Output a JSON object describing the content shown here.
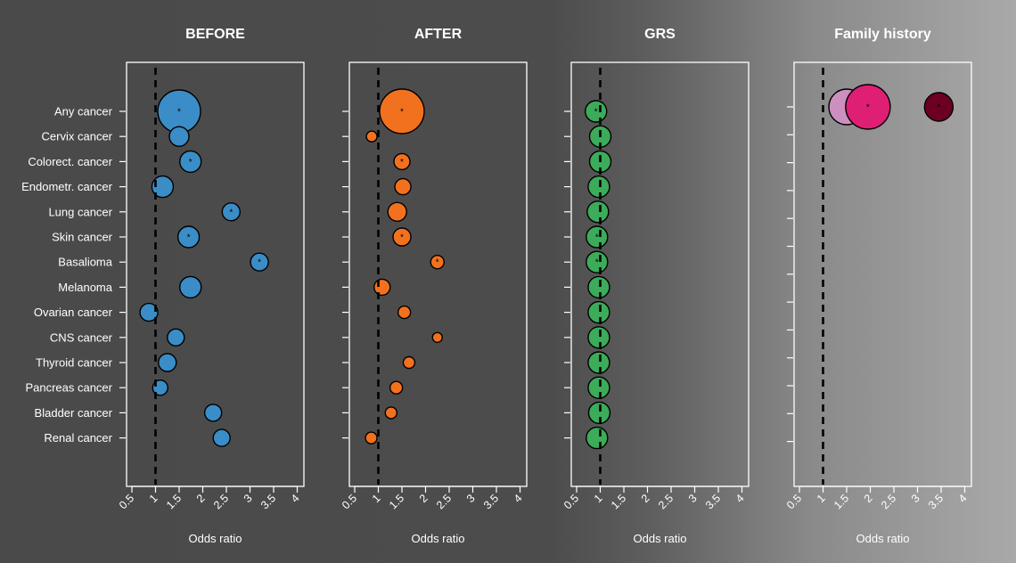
{
  "chart_data": {
    "type": "scatter",
    "subtype": "bubble-forest",
    "categories": [
      "Any cancer",
      "Cervix cancer",
      "Colorect. cancer",
      "Endometr. cancer",
      "Lung cancer",
      "Skin cancer",
      "Basalioma",
      "Melanoma",
      "Ovarian cancer",
      "CNS cancer",
      "Thyroid cancer",
      "Pancreas cancer",
      "Bladder cancer",
      "Renal cancer"
    ],
    "xticks": [
      0.5,
      1,
      1.5,
      2,
      2.5,
      3,
      3.5,
      4
    ],
    "xtick_labels": [
      "0.5",
      "1",
      "1.5",
      "2",
      "2.5",
      "3",
      "3.5",
      "4"
    ],
    "xlim": [
      0.45,
      4.1
    ],
    "reference_line": 1,
    "star_label": "*",
    "panels": [
      {
        "title": "BEFORE",
        "xlabel": "Odds ratio",
        "show_category_labels": true,
        "points": [
          {
            "label": "Any cancer",
            "or": 1.5,
            "radius": 24,
            "star": true,
            "color": "#3a8dc6"
          },
          {
            "label": "Cervix cancer",
            "or": 1.5,
            "radius": 11,
            "star": false,
            "color": "#3a8dc6"
          },
          {
            "label": "Colorect. cancer",
            "or": 1.74,
            "radius": 12,
            "star": true,
            "color": "#3a8dc6"
          },
          {
            "label": "Endometr. cancer",
            "or": 1.15,
            "radius": 12,
            "star": false,
            "color": "#3a8dc6"
          },
          {
            "label": "Lung cancer",
            "or": 2.6,
            "radius": 10,
            "star": true,
            "color": "#3a8dc6"
          },
          {
            "label": "Skin cancer",
            "or": 1.7,
            "radius": 12,
            "star": true,
            "color": "#3a8dc6"
          },
          {
            "label": "Basalioma",
            "or": 3.2,
            "radius": 10,
            "star": true,
            "color": "#3a8dc6"
          },
          {
            "label": "Melanoma",
            "or": 1.74,
            "radius": 12,
            "star": false,
            "color": "#3a8dc6"
          },
          {
            "label": "Ovarian cancer",
            "or": 0.86,
            "radius": 10,
            "star": false,
            "color": "#3a8dc6"
          },
          {
            "label": "CNS cancer",
            "or": 1.43,
            "radius": 9.5,
            "star": false,
            "color": "#3a8dc6"
          },
          {
            "label": "Thyroid cancer",
            "or": 1.25,
            "radius": 10,
            "star": false,
            "color": "#3a8dc6"
          },
          {
            "label": "Pancreas cancer",
            "or": 1.1,
            "radius": 8.5,
            "star": false,
            "color": "#3a8dc6"
          },
          {
            "label": "Bladder cancer",
            "or": 2.22,
            "radius": 9.5,
            "star": false,
            "color": "#3a8dc6"
          },
          {
            "label": "Renal cancer",
            "or": 2.4,
            "radius": 9.5,
            "star": false,
            "color": "#3a8dc6"
          }
        ]
      },
      {
        "title": "AFTER",
        "xlabel": "Odds ratio",
        "show_category_labels": false,
        "points": [
          {
            "label": "Any cancer",
            "or": 1.5,
            "radius": 25,
            "star": true,
            "color": "#f2711e"
          },
          {
            "label": "Cervix cancer",
            "or": 0.86,
            "radius": 6,
            "star": false,
            "color": "#f2711e"
          },
          {
            "label": "Colorect. cancer",
            "or": 1.5,
            "radius": 9,
            "star": true,
            "color": "#f2711e"
          },
          {
            "label": "Endometr. cancer",
            "or": 1.52,
            "radius": 9,
            "star": false,
            "color": "#f2711e"
          },
          {
            "label": "Lung cancer",
            "or": 1.4,
            "radius": 10.5,
            "star": false,
            "color": "#f2711e"
          },
          {
            "label": "Skin cancer",
            "or": 1.5,
            "radius": 10,
            "star": true,
            "color": "#f2711e"
          },
          {
            "label": "Basalioma",
            "or": 2.25,
            "radius": 7.5,
            "star": true,
            "color": "#f2711e"
          },
          {
            "label": "Melanoma",
            "or": 1.08,
            "radius": 9,
            "star": false,
            "color": "#f2711e"
          },
          {
            "label": "Ovarian cancer",
            "or": 1.55,
            "radius": 7,
            "star": false,
            "color": "#f2711e"
          },
          {
            "label": "CNS cancer",
            "or": 2.25,
            "radius": 5.5,
            "star": false,
            "color": "#f2711e"
          },
          {
            "label": "Thyroid cancer",
            "or": 1.65,
            "radius": 6.5,
            "star": false,
            "color": "#f2711e"
          },
          {
            "label": "Pancreas cancer",
            "or": 1.38,
            "radius": 7,
            "star": false,
            "color": "#f2711e"
          },
          {
            "label": "Bladder cancer",
            "or": 1.27,
            "radius": 6.5,
            "star": false,
            "color": "#f2711e"
          },
          {
            "label": "Renal cancer",
            "or": 0.85,
            "radius": 6.5,
            "star": false,
            "color": "#f2711e"
          }
        ]
      },
      {
        "title": "GRS",
        "xlabel": "Odds ratio",
        "show_category_labels": false,
        "points": [
          {
            "label": "Any cancer",
            "or": 0.91,
            "radius": 12,
            "star": true,
            "color": "#3cab5a"
          },
          {
            "label": "Cervix cancer",
            "or": 1.0,
            "radius": 12,
            "star": false,
            "color": "#3cab5a"
          },
          {
            "label": "Colorect. cancer",
            "or": 1.0,
            "radius": 12,
            "star": false,
            "color": "#3cab5a"
          },
          {
            "label": "Endometr. cancer",
            "or": 0.97,
            "radius": 12,
            "star": false,
            "color": "#3cab5a"
          },
          {
            "label": "Lung cancer",
            "or": 0.95,
            "radius": 12,
            "star": false,
            "color": "#3cab5a"
          },
          {
            "label": "Skin cancer",
            "or": 0.93,
            "radius": 12,
            "star": true,
            "color": "#3cab5a"
          },
          {
            "label": "Basalioma",
            "or": 0.93,
            "radius": 12,
            "star": true,
            "color": "#3cab5a"
          },
          {
            "label": "Melanoma",
            "or": 0.97,
            "radius": 12,
            "star": false,
            "color": "#3cab5a"
          },
          {
            "label": "Ovarian cancer",
            "or": 0.97,
            "radius": 12,
            "star": false,
            "color": "#3cab5a"
          },
          {
            "label": "CNS cancer",
            "or": 0.97,
            "radius": 12,
            "star": false,
            "color": "#3cab5a"
          },
          {
            "label": "Thyroid cancer",
            "or": 0.97,
            "radius": 12,
            "star": false,
            "color": "#3cab5a"
          },
          {
            "label": "Pancreas cancer",
            "or": 0.97,
            "radius": 12,
            "star": false,
            "color": "#3cab5a"
          },
          {
            "label": "Bladder cancer",
            "or": 0.98,
            "radius": 12,
            "star": false,
            "color": "#3cab5a"
          },
          {
            "label": "Renal cancer",
            "or": 0.93,
            "radius": 12,
            "star": false,
            "color": "#3cab5a"
          }
        ]
      },
      {
        "title": "Family history",
        "xlabel": "Odds ratio",
        "show_category_labels": false,
        "points": [
          {
            "label": "Any cancer",
            "or": 1.5,
            "radius": 20,
            "star": false,
            "color": "#cc8fc0"
          },
          {
            "label": "Any cancer",
            "or": 1.95,
            "radius": 25,
            "star": true,
            "color": "#de1f73"
          },
          {
            "label": "Any cancer",
            "or": 3.45,
            "radius": 16,
            "star": true,
            "color": "#6c0022"
          }
        ]
      }
    ]
  }
}
